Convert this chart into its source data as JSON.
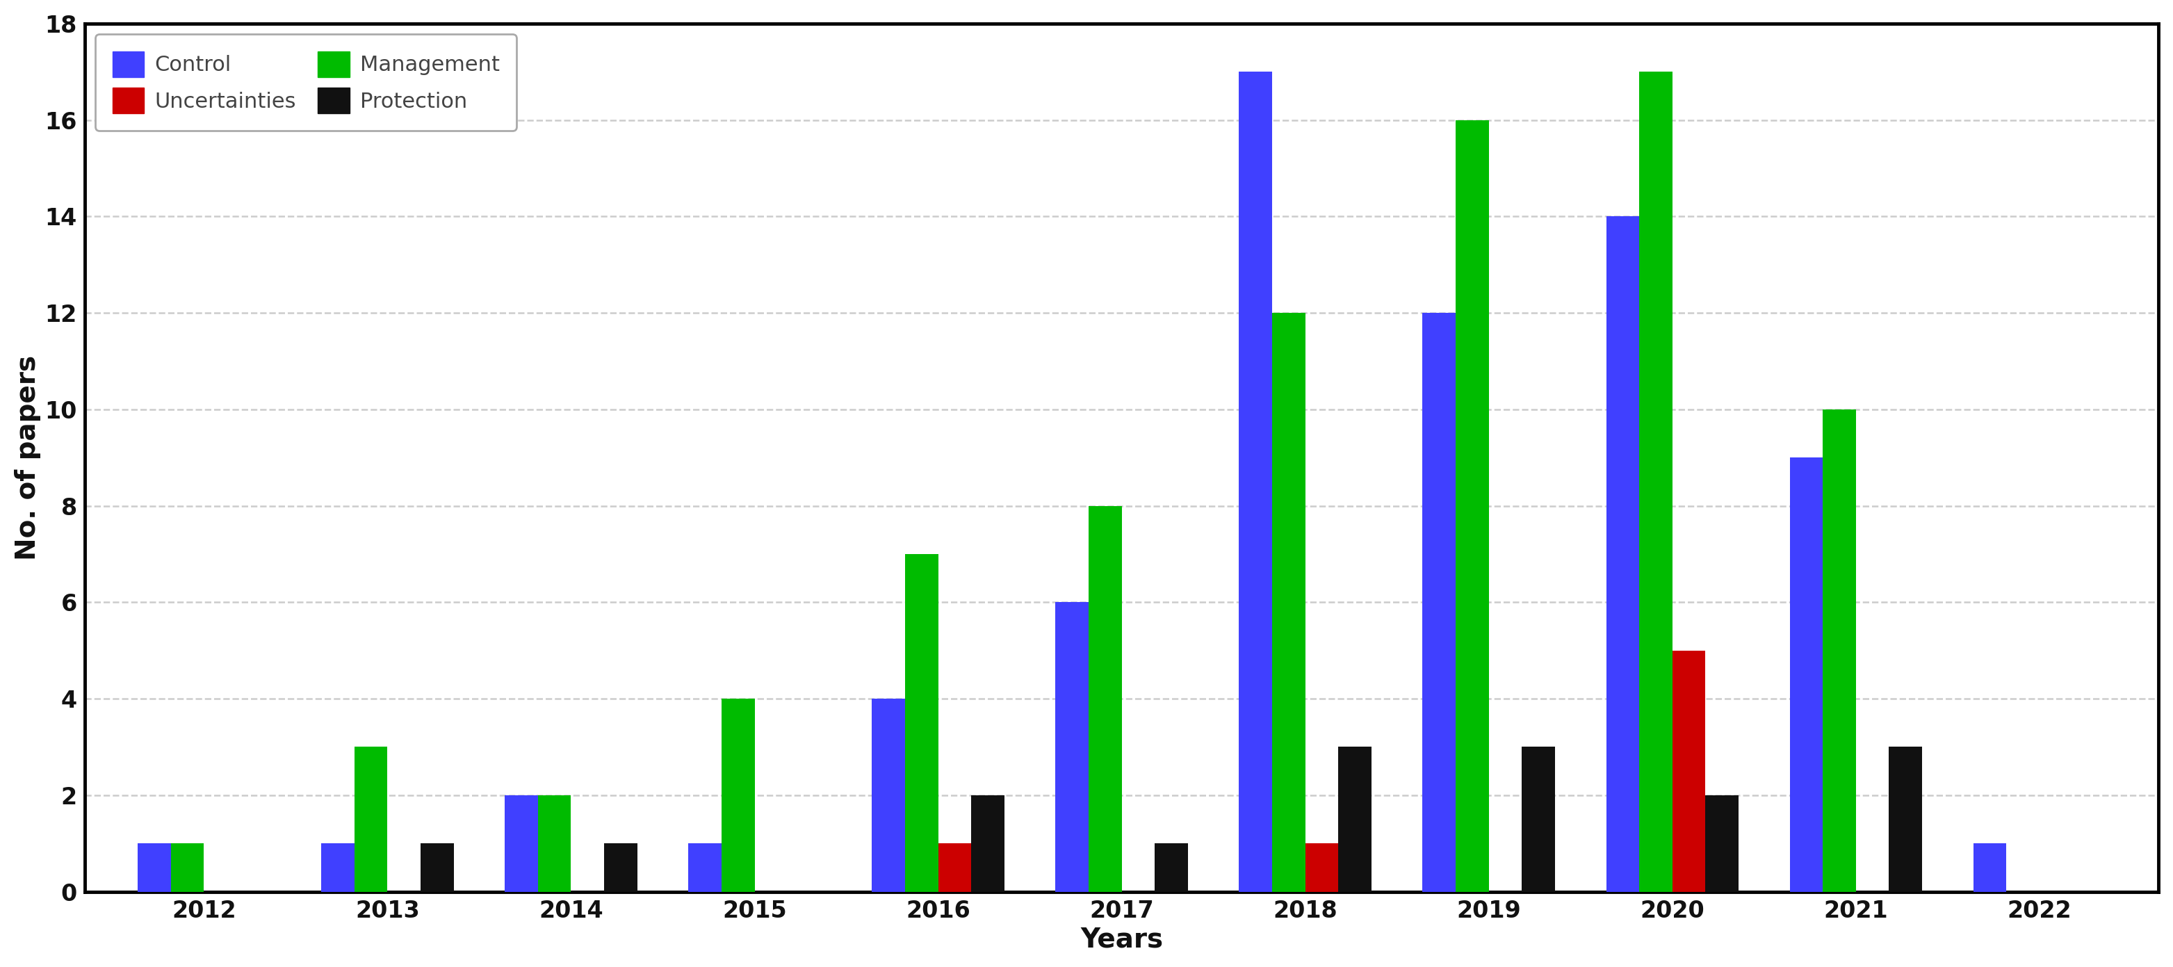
{
  "years": [
    2012,
    2013,
    2014,
    2015,
    2016,
    2017,
    2018,
    2019,
    2020,
    2021,
    2022
  ],
  "control": [
    1,
    1,
    2,
    1,
    4,
    6,
    17,
    12,
    14,
    9,
    1
  ],
  "management": [
    1,
    3,
    2,
    4,
    7,
    8,
    12,
    16,
    17,
    10,
    0
  ],
  "uncertainties": [
    0,
    0,
    0,
    0,
    1,
    0,
    1,
    0,
    5,
    0,
    0
  ],
  "protection": [
    0,
    1,
    1,
    0,
    2,
    1,
    3,
    3,
    2,
    3,
    0
  ],
  "colors": {
    "control": "#4040ff",
    "management": "#00bb00",
    "uncertainties": "#cc0000",
    "protection": "#111111"
  },
  "ylim": [
    0,
    18
  ],
  "yticks": [
    0,
    2,
    4,
    6,
    8,
    10,
    12,
    14,
    16,
    18
  ],
  "ylabel": "No. of papers",
  "xlabel": "Years",
  "background_color": "#ffffff",
  "bar_width": 0.18,
  "grid_color": "#cccccc",
  "axis_label_color": "#111111",
  "tick_color": "#111111",
  "legend_text_color": "#444444",
  "axis_label_fontsize": 28,
  "tick_fontsize": 24,
  "legend_fontsize": 22
}
